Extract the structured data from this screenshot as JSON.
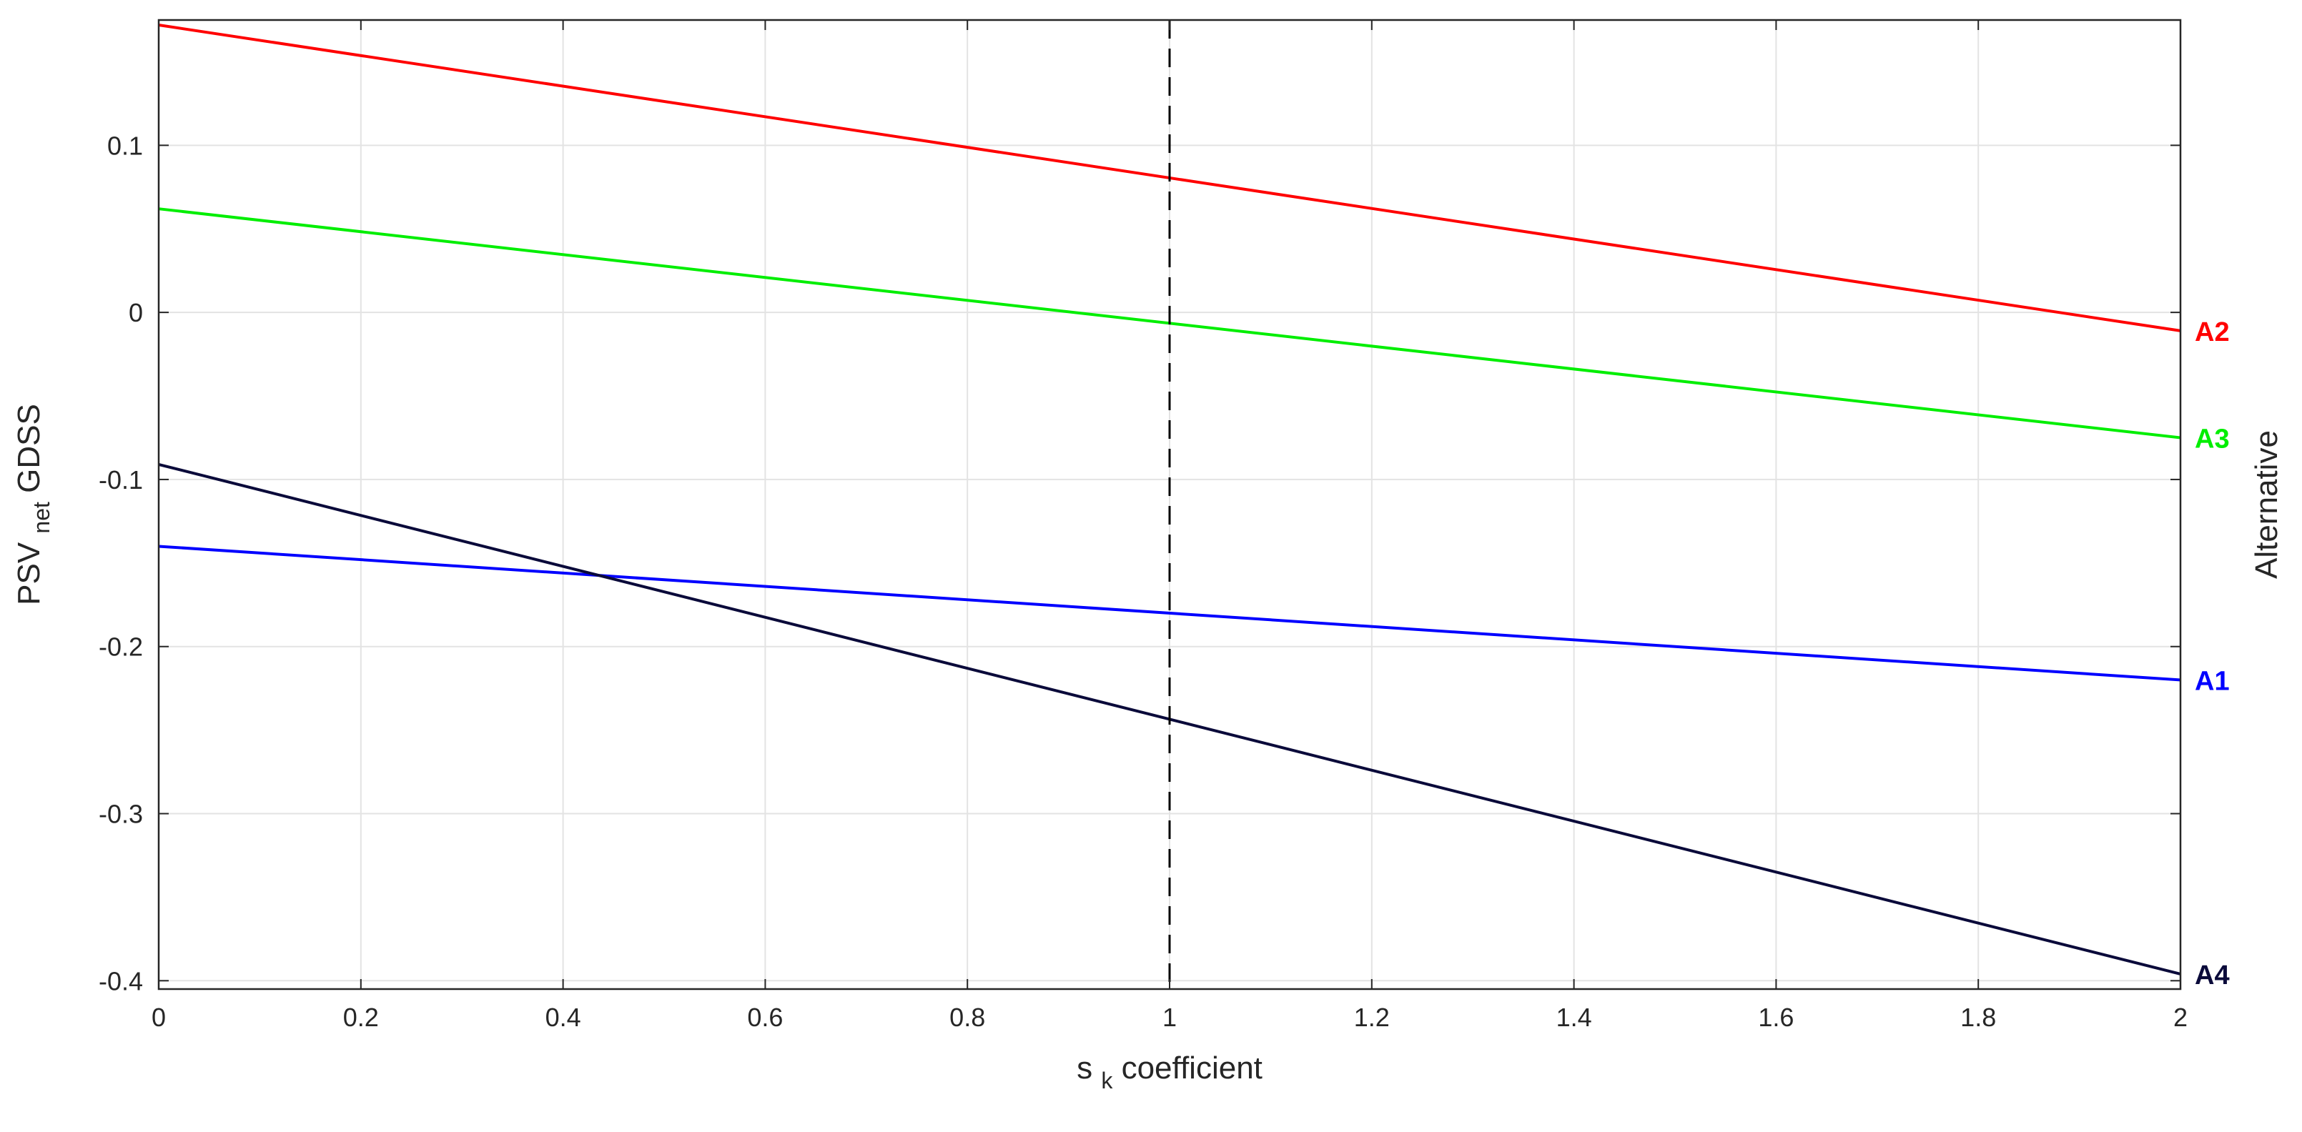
{
  "chart_data": {
    "type": "line",
    "title": "",
    "xlabel": {
      "main": "s",
      "sub": "k",
      "rest": " coefficient"
    },
    "ylabel": {
      "main": "PSV",
      "sub": "net",
      "rest": " GDSS"
    },
    "right_label": "Alternative",
    "xlim": [
      0,
      2
    ],
    "ylim": [
      -0.405,
      0.175
    ],
    "x_ticks": [
      {
        "value": 0,
        "label": "0"
      },
      {
        "value": 0.2,
        "label": "0.2"
      },
      {
        "value": 0.4,
        "label": "0.4"
      },
      {
        "value": 0.6,
        "label": "0.6"
      },
      {
        "value": 0.8,
        "label": "0.8"
      },
      {
        "value": 1,
        "label": "1"
      },
      {
        "value": 1.2,
        "label": "1.2"
      },
      {
        "value": 1.4,
        "label": "1.4"
      },
      {
        "value": 1.6,
        "label": "1.6"
      },
      {
        "value": 1.8,
        "label": "1.8"
      },
      {
        "value": 2,
        "label": "2"
      }
    ],
    "y_ticks": [
      {
        "value": 0.1,
        "label": "0.1"
      },
      {
        "value": 0,
        "label": "0"
      },
      {
        "value": -0.1,
        "label": "-0.1"
      },
      {
        "value": -0.2,
        "label": "-0.2"
      },
      {
        "value": -0.3,
        "label": "-0.3"
      },
      {
        "value": -0.4,
        "label": "-0.4"
      }
    ],
    "grid": true,
    "reference_line": {
      "x": 1,
      "style": "dashed",
      "color": "#000000"
    },
    "series": [
      {
        "name": "A2",
        "color": "#ff0000",
        "x": [
          0,
          2
        ],
        "y": [
          0.172,
          -0.011
        ]
      },
      {
        "name": "A3",
        "color": "#00ee00",
        "x": [
          0,
          2
        ],
        "y": [
          0.062,
          -0.075
        ]
      },
      {
        "name": "A1",
        "color": "#0000ff",
        "x": [
          0,
          2
        ],
        "y": [
          -0.14,
          -0.22
        ]
      },
      {
        "name": "A4",
        "color": "#0a0a3a",
        "x": [
          0,
          2
        ],
        "y": [
          -0.091,
          -0.396
        ]
      }
    ]
  }
}
